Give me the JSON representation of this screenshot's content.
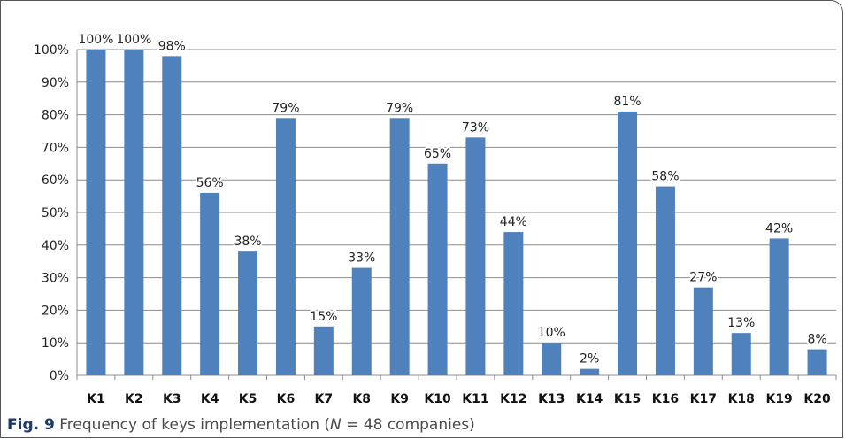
{
  "chart_data": {
    "type": "bar",
    "categories": [
      "K1",
      "K2",
      "K3",
      "K4",
      "K5",
      "K6",
      "K7",
      "K8",
      "K9",
      "K10",
      "K11",
      "K12",
      "K13",
      "K14",
      "K15",
      "K16",
      "K17",
      "K18",
      "K19",
      "K20"
    ],
    "values": [
      100,
      100,
      98,
      56,
      38,
      79,
      15,
      33,
      79,
      65,
      73,
      44,
      10,
      2,
      81,
      58,
      27,
      13,
      42,
      8
    ],
    "data_labels": [
      "100%",
      "100%",
      "98%",
      "56%",
      "38%",
      "79%",
      "15%",
      "33%",
      "79%",
      "65%",
      "73%",
      "44%",
      "10%",
      "2%",
      "81%",
      "58%",
      "27%",
      "13%",
      "42%",
      "8%"
    ],
    "y_ticks": [
      "0%",
      "10%",
      "20%",
      "30%",
      "40%",
      "50%",
      "60%",
      "70%",
      "80%",
      "90%",
      "100%"
    ],
    "ylim": [
      0,
      100
    ],
    "grid": true,
    "legend": "none",
    "bar_color": "#4F81BD",
    "gridline_color": "#8c8c8c"
  },
  "caption": {
    "fig_label": "Fig. 9",
    "text_before_n": "Frequency of keys implementation (",
    "n_symbol": "N",
    "text_after_n": " = 48 companies)"
  }
}
